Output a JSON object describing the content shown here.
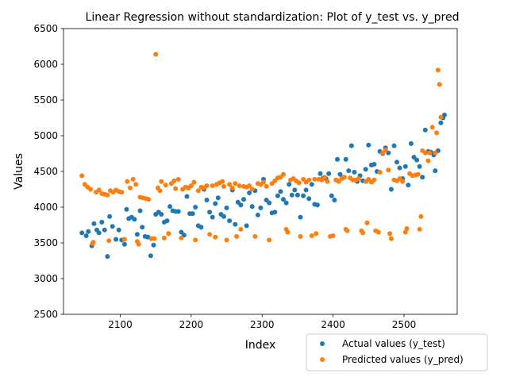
{
  "chart_data": {
    "type": "scatter",
    "title": "Linear Regression without standardization: Plot of y_test vs. y_pred",
    "xlabel": "Index",
    "ylabel": "Values",
    "xlim": [
      2020,
      2575
    ],
    "ylim": [
      2500,
      6500
    ],
    "xticks": [
      2100,
      2200,
      2300,
      2400,
      2500
    ],
    "yticks": [
      2500,
      3000,
      3500,
      4000,
      4500,
      5000,
      5500,
      6000,
      6500
    ],
    "grid": false,
    "legend_position": "lower-right",
    "series": [
      {
        "name": "Actual values (y_test)",
        "color": "#1f77b4",
        "points": [
          [
            2046,
            3640
          ],
          [
            2052,
            3600
          ],
          [
            2055,
            3660
          ],
          [
            2060,
            3460
          ],
          [
            2063,
            3770
          ],
          [
            2067,
            3680
          ],
          [
            2070,
            3640
          ],
          [
            2074,
            3790
          ],
          [
            2078,
            3680
          ],
          [
            2082,
            3310
          ],
          [
            2085,
            3870
          ],
          [
            2089,
            3730
          ],
          [
            2094,
            3550
          ],
          [
            2098,
            3680
          ],
          [
            2102,
            3540
          ],
          [
            2106,
            3480
          ],
          [
            2109,
            3970
          ],
          [
            2112,
            3840
          ],
          [
            2116,
            3860
          ],
          [
            2120,
            3830
          ],
          [
            2124,
            3620
          ],
          [
            2128,
            3950
          ],
          [
            2131,
            3720
          ],
          [
            2135,
            3590
          ],
          [
            2139,
            3580
          ],
          [
            2143,
            3320
          ],
          [
            2147,
            3470
          ],
          [
            2150,
            3900
          ],
          [
            2154,
            3930
          ],
          [
            2158,
            3900
          ],
          [
            2162,
            3790
          ],
          [
            2166,
            3810
          ],
          [
            2170,
            4010
          ],
          [
            2174,
            3950
          ],
          [
            2178,
            3940
          ],
          [
            2182,
            3940
          ],
          [
            2186,
            3650
          ],
          [
            2190,
            3610
          ],
          [
            2194,
            4150
          ],
          [
            2198,
            3910
          ],
          [
            2202,
            3910
          ],
          [
            2206,
            4000
          ],
          [
            2210,
            3740
          ],
          [
            2214,
            3720
          ],
          [
            2218,
            4250
          ],
          [
            2222,
            4100
          ],
          [
            2226,
            3930
          ],
          [
            2230,
            3860
          ],
          [
            2234,
            4050
          ],
          [
            2238,
            4130
          ],
          [
            2242,
            3900
          ],
          [
            2246,
            3870
          ],
          [
            2250,
            3990
          ],
          [
            2254,
            3810
          ],
          [
            2258,
            4240
          ],
          [
            2262,
            3760
          ],
          [
            2266,
            4070
          ],
          [
            2270,
            4030
          ],
          [
            2274,
            4110
          ],
          [
            2278,
            3740
          ],
          [
            2282,
            4200
          ],
          [
            2286,
            4010
          ],
          [
            2290,
            4230
          ],
          [
            2294,
            3890
          ],
          [
            2298,
            3990
          ],
          [
            2302,
            4390
          ],
          [
            2306,
            4100
          ],
          [
            2310,
            4060
          ],
          [
            2314,
            3920
          ],
          [
            2318,
            3930
          ],
          [
            2322,
            4160
          ],
          [
            2326,
            4220
          ],
          [
            2330,
            4110
          ],
          [
            2334,
            4060
          ],
          [
            2338,
            4320
          ],
          [
            2342,
            4170
          ],
          [
            2346,
            4240
          ],
          [
            2350,
            4170
          ],
          [
            2354,
            3860
          ],
          [
            2358,
            4160
          ],
          [
            2362,
            4240
          ],
          [
            2366,
            4120
          ],
          [
            2370,
            4320
          ],
          [
            2374,
            4040
          ],
          [
            2378,
            4030
          ],
          [
            2382,
            4470
          ],
          [
            2386,
            4410
          ],
          [
            2390,
            4400
          ],
          [
            2394,
            4470
          ],
          [
            2398,
            4160
          ],
          [
            2402,
            4100
          ],
          [
            2406,
            4670
          ],
          [
            2410,
            4460
          ],
          [
            2414,
            4410
          ],
          [
            2418,
            4670
          ],
          [
            2422,
            4510
          ],
          [
            2426,
            4860
          ],
          [
            2430,
            4490
          ],
          [
            2434,
            4360
          ],
          [
            2438,
            4440
          ],
          [
            2442,
            4370
          ],
          [
            2446,
            4530
          ],
          [
            2450,
            4870
          ],
          [
            2454,
            4590
          ],
          [
            2458,
            4600
          ],
          [
            2462,
            4500
          ],
          [
            2466,
            4780
          ],
          [
            2470,
            4750
          ],
          [
            2474,
            4830
          ],
          [
            2478,
            4760
          ],
          [
            2482,
            4250
          ],
          [
            2486,
            4860
          ],
          [
            2490,
            4630
          ],
          [
            2494,
            4550
          ],
          [
            2498,
            4400
          ],
          [
            2502,
            4570
          ],
          [
            2506,
            4310
          ],
          [
            2510,
            4890
          ],
          [
            2514,
            4700
          ],
          [
            2518,
            4660
          ],
          [
            2522,
            4570
          ],
          [
            2526,
            4420
          ],
          [
            2530,
            5080
          ],
          [
            2534,
            4780
          ],
          [
            2538,
            4770
          ],
          [
            2542,
            4730
          ],
          [
            2544,
            4510
          ],
          [
            2548,
            4790
          ],
          [
            2552,
            5180
          ],
          [
            2555,
            5250
          ],
          [
            2557,
            5290
          ]
        ]
      },
      {
        "name": "Predicted values (y_pred)",
        "color": "#ff7f0e",
        "points": [
          [
            2046,
            4440
          ],
          [
            2050,
            4320
          ],
          [
            2054,
            4280
          ],
          [
            2058,
            4250
          ],
          [
            2061,
            3490
          ],
          [
            2062,
            3510
          ],
          [
            2066,
            4210
          ],
          [
            2070,
            4240
          ],
          [
            2074,
            4190
          ],
          [
            2078,
            4180
          ],
          [
            2082,
            4170
          ],
          [
            2084,
            3530
          ],
          [
            2086,
            4230
          ],
          [
            2090,
            4210
          ],
          [
            2094,
            4240
          ],
          [
            2098,
            4220
          ],
          [
            2102,
            4210
          ],
          [
            2106,
            3550
          ],
          [
            2110,
            4360
          ],
          [
            2114,
            4270
          ],
          [
            2118,
            4390
          ],
          [
            2122,
            4320
          ],
          [
            2124,
            3520
          ],
          [
            2126,
            3480
          ],
          [
            2128,
            4140
          ],
          [
            2132,
            4130
          ],
          [
            2136,
            4120
          ],
          [
            2140,
            4110
          ],
          [
            2144,
            3560
          ],
          [
            2148,
            3560
          ],
          [
            2150,
            6140
          ],
          [
            2153,
            4270
          ],
          [
            2156,
            4230
          ],
          [
            2158,
            4360
          ],
          [
            2162,
            3570
          ],
          [
            2164,
            4310
          ],
          [
            2168,
            3630
          ],
          [
            2172,
            4330
          ],
          [
            2176,
            4370
          ],
          [
            2178,
            4260
          ],
          [
            2182,
            4390
          ],
          [
            2186,
            3570
          ],
          [
            2188,
            4250
          ],
          [
            2192,
            4280
          ],
          [
            2196,
            4270
          ],
          [
            2200,
            4300
          ],
          [
            2204,
            4350
          ],
          [
            2206,
            3540
          ],
          [
            2210,
            4230
          ],
          [
            2214,
            4280
          ],
          [
            2218,
            4270
          ],
          [
            2222,
            4300
          ],
          [
            2226,
            3620
          ],
          [
            2230,
            4300
          ],
          [
            2234,
            3580
          ],
          [
            2236,
            4320
          ],
          [
            2240,
            4340
          ],
          [
            2244,
            4360
          ],
          [
            2246,
            4290
          ],
          [
            2250,
            3540
          ],
          [
            2254,
            4320
          ],
          [
            2258,
            4270
          ],
          [
            2262,
            4330
          ],
          [
            2264,
            3590
          ],
          [
            2268,
            4300
          ],
          [
            2270,
            3690
          ],
          [
            2274,
            4290
          ],
          [
            2278,
            4280
          ],
          [
            2282,
            4300
          ],
          [
            2286,
            4250
          ],
          [
            2290,
            3590
          ],
          [
            2294,
            4330
          ],
          [
            2298,
            4320
          ],
          [
            2302,
            4350
          ],
          [
            2306,
            4290
          ],
          [
            2310,
            3540
          ],
          [
            2314,
            4330
          ],
          [
            2318,
            4370
          ],
          [
            2322,
            4410
          ],
          [
            2326,
            4420
          ],
          [
            2330,
            4460
          ],
          [
            2334,
            3690
          ],
          [
            2336,
            3650
          ],
          [
            2340,
            4380
          ],
          [
            2344,
            4400
          ],
          [
            2348,
            4370
          ],
          [
            2352,
            4340
          ],
          [
            2354,
            3590
          ],
          [
            2358,
            4390
          ],
          [
            2362,
            4350
          ],
          [
            2366,
            4380
          ],
          [
            2370,
            3600
          ],
          [
            2374,
            4390
          ],
          [
            2376,
            3630
          ],
          [
            2380,
            4390
          ],
          [
            2384,
            4380
          ],
          [
            2388,
            4420
          ],
          [
            2392,
            4360
          ],
          [
            2396,
            3590
          ],
          [
            2400,
            3600
          ],
          [
            2404,
            4380
          ],
          [
            2408,
            4360
          ],
          [
            2412,
            4400
          ],
          [
            2416,
            4420
          ],
          [
            2418,
            3690
          ],
          [
            2420,
            3670
          ],
          [
            2424,
            4410
          ],
          [
            2428,
            4380
          ],
          [
            2432,
            4380
          ],
          [
            2436,
            4400
          ],
          [
            2440,
            3670
          ],
          [
            2442,
            3640
          ],
          [
            2446,
            4360
          ],
          [
            2448,
            3780
          ],
          [
            2450,
            4390
          ],
          [
            2454,
            4350
          ],
          [
            2458,
            4380
          ],
          [
            2460,
            3670
          ],
          [
            2464,
            3650
          ],
          [
            2466,
            4490
          ],
          [
            2470,
            4760
          ],
          [
            2474,
            4800
          ],
          [
            2478,
            4520
          ],
          [
            2480,
            3630
          ],
          [
            2482,
            3560
          ],
          [
            2486,
            4380
          ],
          [
            2490,
            4370
          ],
          [
            2494,
            4400
          ],
          [
            2498,
            4360
          ],
          [
            2502,
            3650
          ],
          [
            2504,
            3700
          ],
          [
            2508,
            4470
          ],
          [
            2512,
            4440
          ],
          [
            2516,
            4450
          ],
          [
            2520,
            4460
          ],
          [
            2522,
            3690
          ],
          [
            2524,
            3870
          ],
          [
            2526,
            4790
          ],
          [
            2530,
            4760
          ],
          [
            2534,
            4650
          ],
          [
            2536,
            4760
          ],
          [
            2540,
            5120
          ],
          [
            2544,
            4760
          ],
          [
            2546,
            5040
          ],
          [
            2548,
            5920
          ],
          [
            2550,
            5720
          ],
          [
            2552,
            5260
          ]
        ]
      }
    ]
  }
}
